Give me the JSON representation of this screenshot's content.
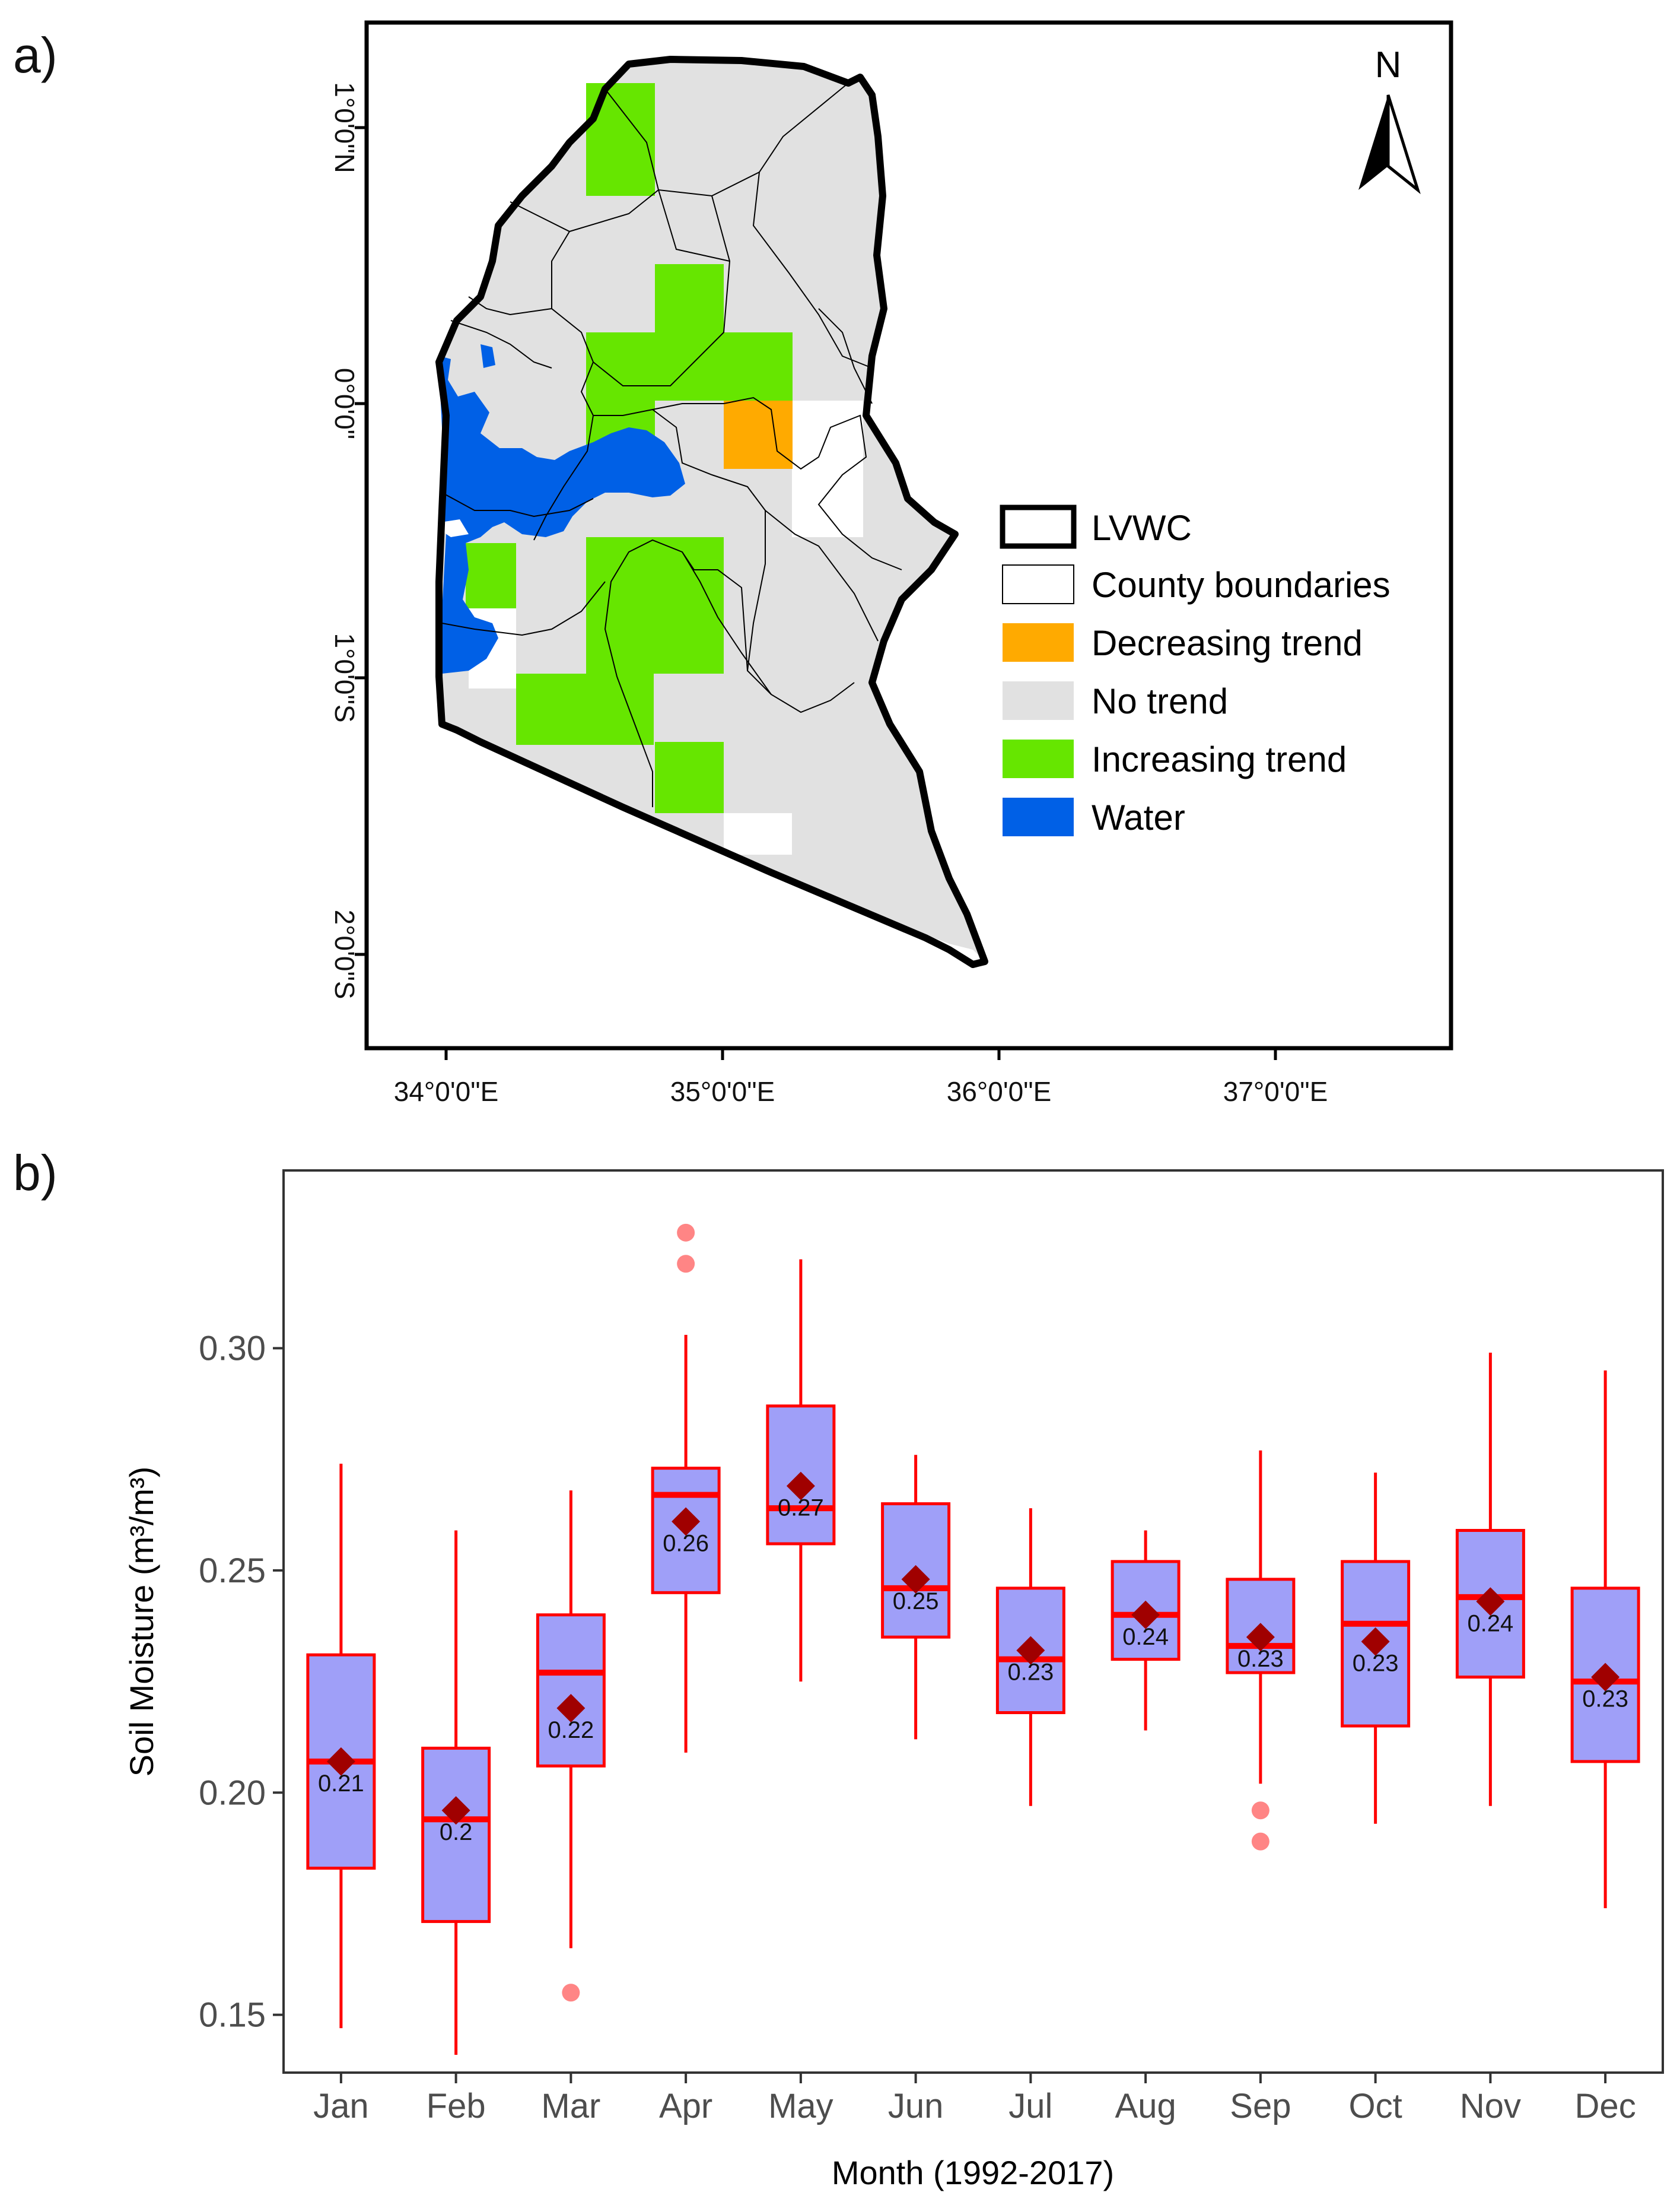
{
  "panel_a": {
    "label": "a)",
    "north_label": "N",
    "x_ticks": [
      "34°0'0\"E",
      "35°0'0\"E",
      "36°0'0\"E",
      "37°0'0\"E"
    ],
    "y_ticks": [
      "1°0'0\"N",
      "0°0'0\"",
      "1°0'0\"S",
      "2°0'0\"S"
    ],
    "legend": [
      {
        "label": "LVWC",
        "kind": "thick-outline",
        "color": "#000000"
      },
      {
        "label": "County boundaries",
        "kind": "thin-outline",
        "color": "#000000"
      },
      {
        "label": "Decreasing trend",
        "kind": "fill",
        "color": "#ffaa00"
      },
      {
        "label": "No trend",
        "kind": "fill",
        "color": "#e1e1e1"
      },
      {
        "label": "Increasing trend",
        "kind": "fill",
        "color": "#66e600"
      },
      {
        "label": "Water",
        "kind": "fill",
        "color": "#0060e6"
      }
    ]
  },
  "panel_b": {
    "label": "b)"
  },
  "chart_data": {
    "type": "box",
    "title": "",
    "xlabel": "Month (1992-2017)",
    "ylabel": "Soil Moisture (m³/m³)",
    "ylim": [
      0.137,
      0.34
    ],
    "y_ticks": [
      0.15,
      0.2,
      0.25,
      0.3
    ],
    "y_tick_labels": [
      "0.15",
      "0.20",
      "0.25",
      "0.30"
    ],
    "colors": {
      "box_fill": "#9f9ff8",
      "box_edge": "#ff0000",
      "median": "#ff0000",
      "mean_marker": "#a00000",
      "outlier": "#ff7070"
    },
    "categories": [
      "Jan",
      "Feb",
      "Mar",
      "Apr",
      "May",
      "Jun",
      "Jul",
      "Aug",
      "Sep",
      "Oct",
      "Nov",
      "Dec"
    ],
    "boxes": [
      {
        "month": "Jan",
        "whisker_low": 0.147,
        "q1": 0.183,
        "median": 0.207,
        "q3": 0.231,
        "whisker_high": 0.274,
        "mean": 0.207,
        "mean_label": "0.21",
        "outliers": []
      },
      {
        "month": "Feb",
        "whisker_low": 0.141,
        "q1": 0.171,
        "median": 0.194,
        "q3": 0.21,
        "whisker_high": 0.259,
        "mean": 0.196,
        "mean_label": "0.2",
        "outliers": []
      },
      {
        "month": "Mar",
        "whisker_low": 0.165,
        "q1": 0.206,
        "median": 0.227,
        "q3": 0.24,
        "whisker_high": 0.268,
        "mean": 0.219,
        "mean_label": "0.22",
        "outliers": [
          0.155
        ]
      },
      {
        "month": "Apr",
        "whisker_low": 0.209,
        "q1": 0.245,
        "median": 0.267,
        "q3": 0.273,
        "whisker_high": 0.303,
        "mean": 0.261,
        "mean_label": "0.26",
        "outliers": [
          0.319,
          0.326
        ]
      },
      {
        "month": "May",
        "whisker_low": 0.225,
        "q1": 0.256,
        "median": 0.264,
        "q3": 0.287,
        "whisker_high": 0.32,
        "mean": 0.269,
        "mean_label": "0.27",
        "outliers": []
      },
      {
        "month": "Jun",
        "whisker_low": 0.212,
        "q1": 0.235,
        "median": 0.246,
        "q3": 0.265,
        "whisker_high": 0.276,
        "mean": 0.248,
        "mean_label": "0.25",
        "outliers": []
      },
      {
        "month": "Jul",
        "whisker_low": 0.197,
        "q1": 0.218,
        "median": 0.23,
        "q3": 0.246,
        "whisker_high": 0.264,
        "mean": 0.232,
        "mean_label": "0.23",
        "outliers": []
      },
      {
        "month": "Aug",
        "whisker_low": 0.214,
        "q1": 0.23,
        "median": 0.24,
        "q3": 0.252,
        "whisker_high": 0.259,
        "mean": 0.24,
        "mean_label": "0.24",
        "outliers": []
      },
      {
        "month": "Sep",
        "whisker_low": 0.202,
        "q1": 0.227,
        "median": 0.233,
        "q3": 0.248,
        "whisker_high": 0.277,
        "mean": 0.235,
        "mean_label": "0.23",
        "outliers": [
          0.196,
          0.189
        ]
      },
      {
        "month": "Oct",
        "whisker_low": 0.193,
        "q1": 0.215,
        "median": 0.238,
        "q3": 0.252,
        "whisker_high": 0.272,
        "mean": 0.234,
        "mean_label": "0.23",
        "outliers": []
      },
      {
        "month": "Nov",
        "whisker_low": 0.197,
        "q1": 0.226,
        "median": 0.244,
        "q3": 0.259,
        "whisker_high": 0.299,
        "mean": 0.243,
        "mean_label": "0.24",
        "outliers": []
      },
      {
        "month": "Dec",
        "whisker_low": 0.174,
        "q1": 0.207,
        "median": 0.225,
        "q3": 0.246,
        "whisker_high": 0.295,
        "mean": 0.226,
        "mean_label": "0.23",
        "outliers": []
      }
    ]
  }
}
